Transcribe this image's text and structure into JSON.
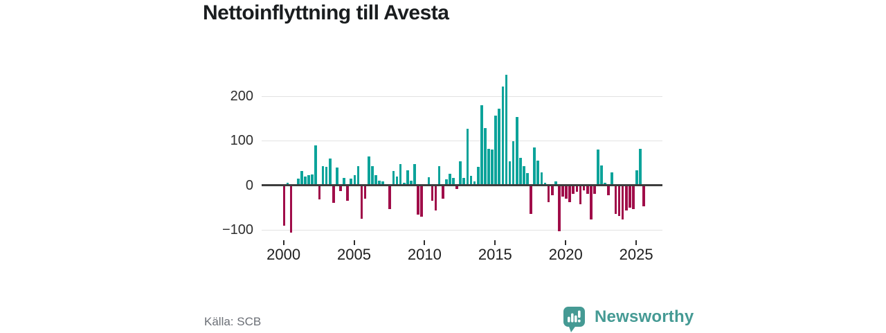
{
  "title": "Nettoinflyttning till Avesta",
  "source": "Källa: SCB",
  "brand": {
    "name": "Newsworthy",
    "logo_icon": "speech-bubble-bar-chart"
  },
  "colors": {
    "positive_bar": "#0ca39a",
    "negative_bar": "#a00d49",
    "zero_line": "#3d3d3d",
    "gridline": "#e2e2e2",
    "brand_teal": "#459a94",
    "title_text": "#1a1d1f",
    "source_text": "#6b6f76"
  },
  "chart_data": {
    "type": "bar",
    "title": "Nettoinflyttning till Avesta",
    "xlabel": "",
    "ylabel": "",
    "frequency": "quarterly",
    "period_start": "2000 Q1",
    "period_end": "2025 Q3",
    "x_tick_labels": [
      "2000",
      "2005",
      "2010",
      "2015",
      "2020",
      "2025"
    ],
    "y_ticks": [
      200,
      100,
      0,
      -100
    ],
    "y_tick_labels": [
      "200",
      "100",
      "0",
      "−100"
    ],
    "ylim": [
      -130,
      265
    ],
    "grid": "horizontal-only",
    "legend": "none",
    "values": [
      -91,
      5,
      -107,
      0,
      15,
      32,
      20,
      22,
      24,
      90,
      -32,
      43,
      41,
      60,
      -40,
      40,
      -13,
      17,
      -35,
      15,
      22,
      43,
      -75,
      -30,
      65,
      42,
      23,
      10,
      9,
      0,
      -53,
      32,
      20,
      48,
      6,
      34,
      10,
      47,
      -66,
      -71,
      0,
      18,
      -35,
      -56,
      42,
      -31,
      13,
      25,
      16,
      -8,
      54,
      16,
      126,
      21,
      8,
      41,
      179,
      128,
      82,
      80,
      157,
      171,
      222,
      248,
      54,
      99,
      153,
      61,
      42,
      27,
      -64,
      85,
      55,
      28,
      6,
      -38,
      -22,
      9,
      -104,
      -25,
      -30,
      -38,
      -20,
      -15,
      -43,
      -12,
      -20,
      -77,
      -20,
      80,
      45,
      5,
      -22,
      28,
      -64,
      -69,
      -77,
      -56,
      -51,
      -53,
      34,
      81,
      -48
    ]
  }
}
